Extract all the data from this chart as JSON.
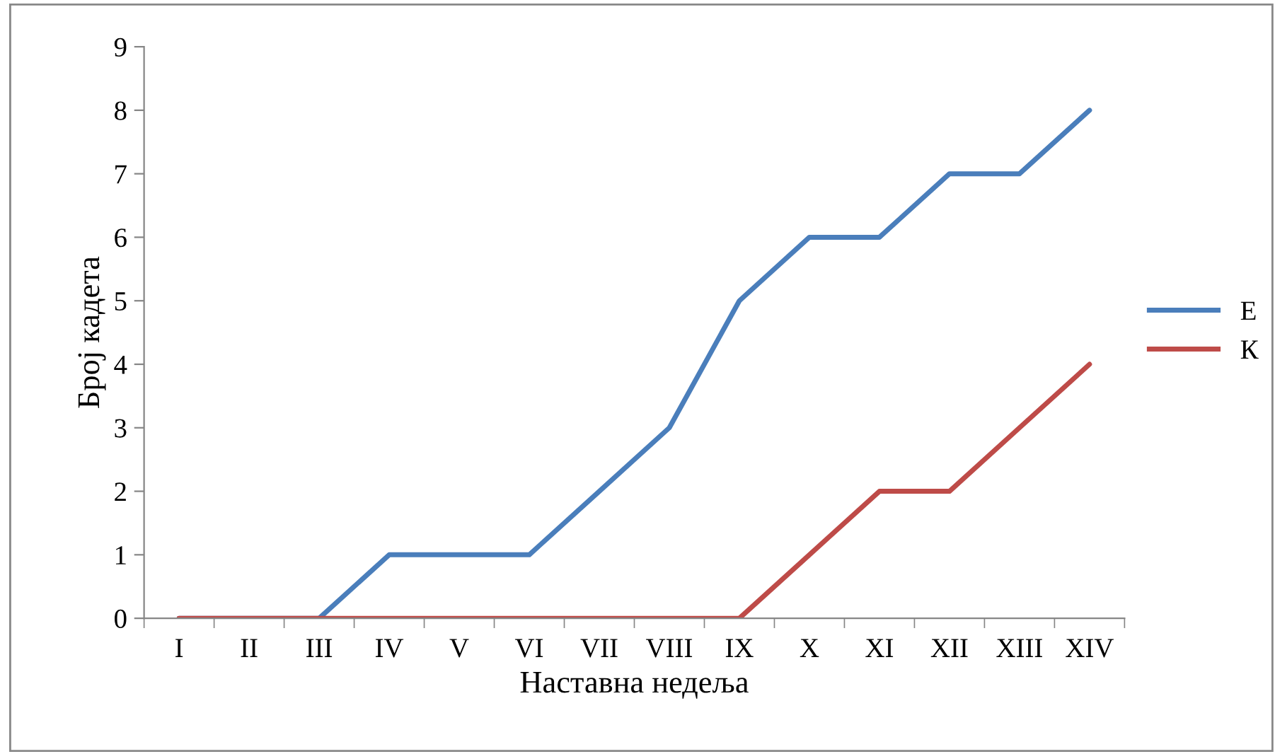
{
  "chart_data": {
    "type": "line",
    "xlabel": "Наставна недеља",
    "ylabel": "Број кадета",
    "categories": [
      "I",
      "II",
      "III",
      "IV",
      "V",
      "VI",
      "VII",
      "VIII",
      "IX",
      "X",
      "XI",
      "XII",
      "XIII",
      "XIV"
    ],
    "series": [
      {
        "name": "Е",
        "color": "#4a7ebb",
        "values": [
          0,
          0,
          0,
          1,
          1,
          1,
          2,
          3,
          5,
          6,
          6,
          7,
          7,
          8
        ]
      },
      {
        "name": "К",
        "color": "#be4b48",
        "values": [
          0,
          0,
          0,
          0,
          0,
          0,
          0,
          0,
          0,
          1,
          2,
          2,
          3,
          4
        ]
      }
    ],
    "ylim": [
      0,
      9
    ],
    "yticks": [
      0,
      1,
      2,
      3,
      4,
      5,
      6,
      7,
      8,
      9
    ],
    "grid": false,
    "legend": "right",
    "marker": "none",
    "line_style": "solid"
  }
}
